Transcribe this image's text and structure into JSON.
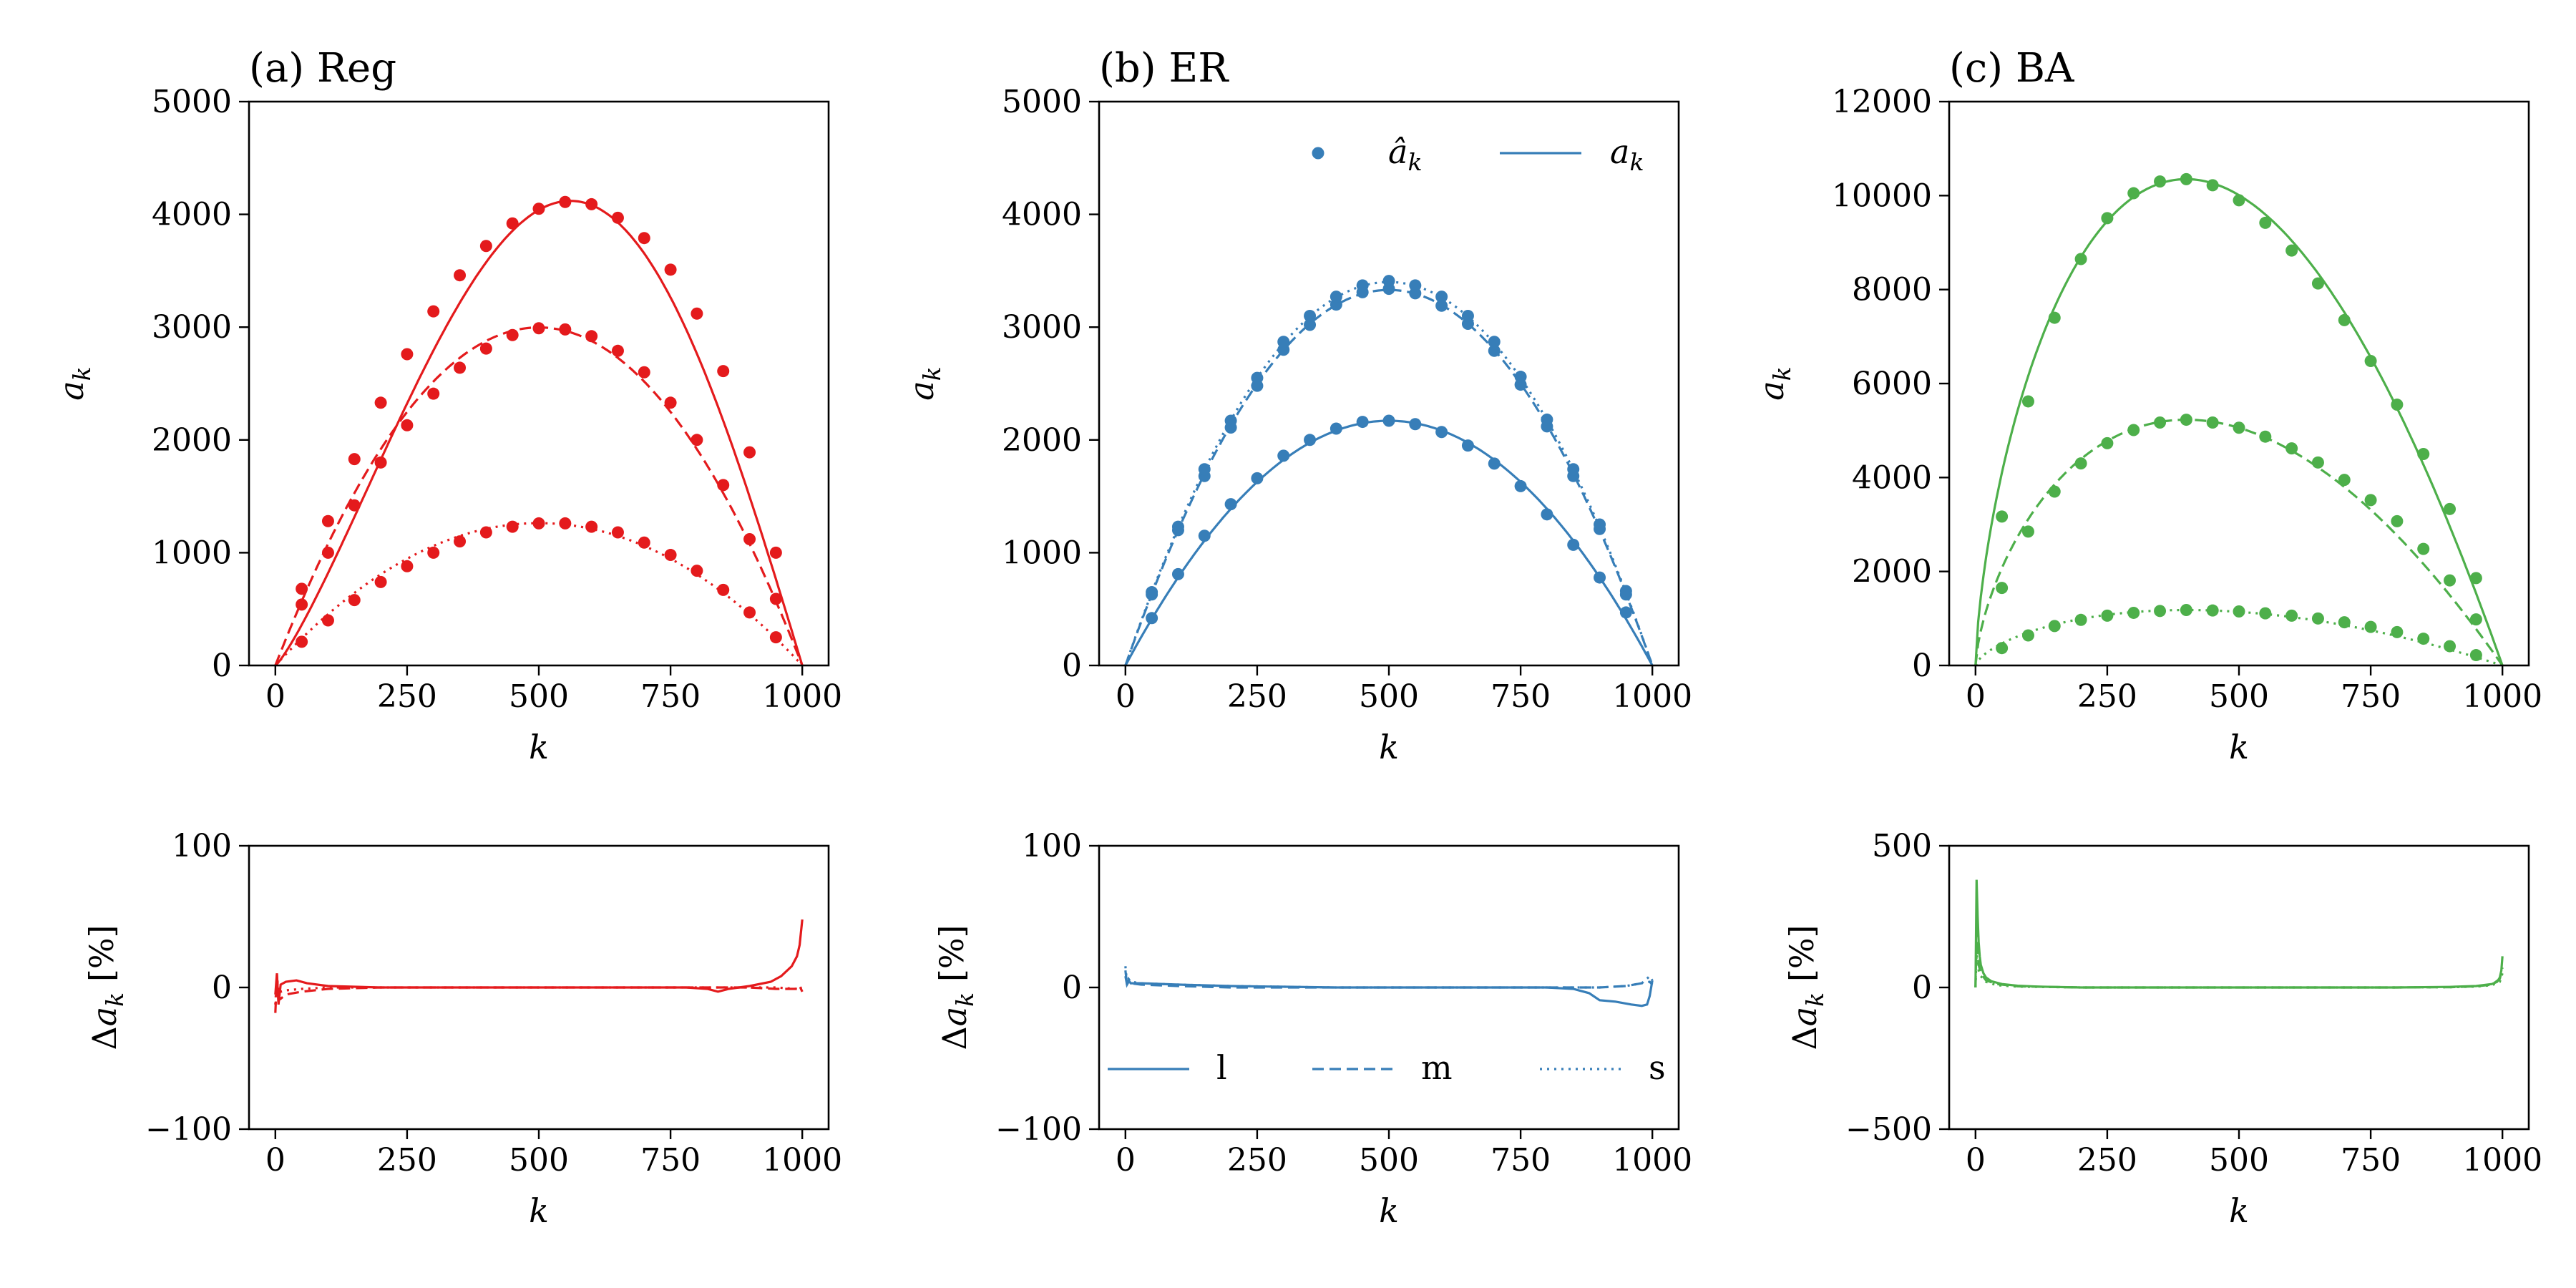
{
  "colors": {
    "reg": "#e41a1c",
    "er": "#377eb8",
    "ba": "#4daf4a",
    "axis": "#000000"
  },
  "legend_top": {
    "marker_label": "â_k",
    "line_label": "a_k"
  },
  "legend_bottom": {
    "items": [
      {
        "label": "l",
        "style": "solid"
      },
      {
        "label": "m",
        "style": "dashed"
      },
      {
        "label": "s",
        "style": "dotted"
      }
    ]
  },
  "chart_data": [
    {
      "panel": "a-top",
      "type": "line",
      "title": "(a) Reg",
      "xlabel": "k",
      "ylabel": "a_k",
      "xlim": [
        -50,
        1050
      ],
      "ylim": [
        0,
        5000
      ],
      "xticks": [
        0,
        250,
        500,
        750,
        1000
      ],
      "xtick_labels": [
        "0",
        "250",
        "500",
        "750",
        "1000"
      ],
      "yticks": [
        0,
        1000,
        2000,
        3000,
        4000,
        5000
      ],
      "ytick_labels": [
        "0",
        "1000",
        "2000",
        "3000",
        "4000",
        "5000"
      ],
      "color": "#e41a1c",
      "series": [
        {
          "style": "solid",
          "shape": "sine",
          "peak": 4120,
          "peak_x": 560,
          "start": 0,
          "end": 1000
        },
        {
          "style": "dashed",
          "shape": "parabola",
          "peak": 2990,
          "peak_x": 525,
          "start": 0,
          "end": 1000
        },
        {
          "style": "dotted",
          "shape": "parabola",
          "peak": 1260,
          "peak_x": 520,
          "start": 0,
          "end": 1000
        }
      ],
      "points": [
        {
          "x": [
            50,
            100,
            150,
            200,
            250,
            300,
            350,
            400,
            450,
            500,
            550,
            600,
            650,
            700,
            750,
            800,
            850,
            900,
            950
          ],
          "y": [
            680,
            1280,
            1830,
            2330,
            2760,
            3140,
            3460,
            3720,
            3920,
            4050,
            4110,
            4090,
            3970,
            3790,
            3510,
            3120,
            2610,
            1890,
            1000
          ]
        },
        {
          "x": [
            50,
            100,
            150,
            200,
            250,
            300,
            350,
            400,
            450,
            500,
            550,
            600,
            650,
            700,
            750,
            800,
            850,
            900,
            950
          ],
          "y": [
            540,
            1000,
            1420,
            1800,
            2130,
            2410,
            2640,
            2810,
            2930,
            2990,
            2980,
            2920,
            2790,
            2600,
            2330,
            2000,
            1600,
            1120,
            590
          ]
        },
        {
          "x": [
            50,
            100,
            150,
            200,
            250,
            300,
            350,
            400,
            450,
            500,
            550,
            600,
            650,
            700,
            750,
            800,
            850,
            900,
            950
          ],
          "y": [
            210,
            400,
            580,
            740,
            880,
            1000,
            1100,
            1180,
            1230,
            1260,
            1260,
            1230,
            1180,
            1090,
            980,
            840,
            670,
            470,
            250
          ]
        }
      ]
    },
    {
      "panel": "b-top",
      "type": "line",
      "title": "(b) ER",
      "xlabel": "k",
      "ylabel": "a_k",
      "xlim": [
        -50,
        1050
      ],
      "ylim": [
        0,
        5000
      ],
      "xticks": [
        0,
        250,
        500,
        750,
        1000
      ],
      "xtick_labels": [
        "0",
        "250",
        "500",
        "750",
        "1000"
      ],
      "yticks": [
        0,
        1000,
        2000,
        3000,
        4000,
        5000
      ],
      "ytick_labels": [
        "0",
        "1000",
        "2000",
        "3000",
        "4000",
        "5000"
      ],
      "color": "#377eb8",
      "series": [
        {
          "style": "solid",
          "shape": "parabola",
          "peak": 2170,
          "peak_x": 500,
          "start": 0,
          "end": 1000
        },
        {
          "style": "dashed",
          "shape": "parabola",
          "peak": 3330,
          "peak_x": 500,
          "start": 0,
          "end": 1000
        },
        {
          "style": "dotted",
          "shape": "parabola",
          "peak": 3400,
          "peak_x": 500,
          "start": 0,
          "end": 1000
        }
      ],
      "points": [
        {
          "x": [
            50,
            100,
            150,
            200,
            250,
            300,
            350,
            400,
            450,
            500,
            550,
            600,
            650,
            700,
            750,
            800,
            850,
            900,
            950
          ],
          "y": [
            420,
            810,
            1150,
            1430,
            1660,
            1860,
            2000,
            2100,
            2160,
            2170,
            2140,
            2070,
            1950,
            1790,
            1590,
            1340,
            1070,
            780,
            470
          ]
        },
        {
          "x": [
            50,
            100,
            150,
            200,
            250,
            300,
            350,
            400,
            450,
            500,
            550,
            600,
            650,
            700,
            750,
            800,
            850,
            900,
            950
          ],
          "y": [
            630,
            1200,
            1680,
            2110,
            2480,
            2800,
            3020,
            3200,
            3310,
            3340,
            3300,
            3190,
            3030,
            2790,
            2490,
            2120,
            1680,
            1210,
            630
          ]
        },
        {
          "x": [
            50,
            100,
            150,
            200,
            250,
            300,
            350,
            400,
            450,
            500,
            550,
            600,
            650,
            700,
            750,
            800,
            850,
            900,
            950
          ],
          "y": [
            650,
            1230,
            1740,
            2170,
            2550,
            2870,
            3100,
            3270,
            3370,
            3410,
            3370,
            3270,
            3100,
            2870,
            2560,
            2180,
            1740,
            1250,
            660
          ]
        }
      ]
    },
    {
      "panel": "c-top",
      "type": "line",
      "title": "(c) BA",
      "xlabel": "k",
      "ylabel": "a_k",
      "xlim": [
        -50,
        1050
      ],
      "ylim": [
        0,
        12000
      ],
      "xticks": [
        0,
        250,
        500,
        750,
        1000
      ],
      "xtick_labels": [
        "0",
        "250",
        "500",
        "750",
        "1000"
      ],
      "yticks": [
        0,
        2000,
        4000,
        6000,
        8000,
        10000,
        12000
      ],
      "ytick_labels": [
        "0",
        "2000",
        "4000",
        "6000",
        "8000",
        "10000",
        "12000"
      ],
      "color": "#4daf4a",
      "series": [
        {
          "style": "solid",
          "shape": "skew",
          "peak": 10350,
          "peak_x": 400,
          "start": 0,
          "end": 1000
        },
        {
          "style": "dashed",
          "shape": "skew",
          "peak": 5230,
          "peak_x": 400,
          "start": 0,
          "end": 1000
        },
        {
          "style": "dotted",
          "shape": "skew",
          "peak": 1180,
          "peak_x": 400,
          "start": 0,
          "end": 1000
        }
      ],
      "points": [
        {
          "x": [
            50,
            100,
            150,
            200,
            250,
            300,
            350,
            400,
            450,
            500,
            550,
            600,
            650,
            700,
            750,
            800,
            850,
            900,
            950
          ],
          "y": [
            3170,
            5620,
            7400,
            8650,
            9520,
            10050,
            10300,
            10350,
            10220,
            9900,
            9420,
            8830,
            8130,
            7350,
            6480,
            5550,
            4500,
            3330,
            1860
          ]
        },
        {
          "x": [
            50,
            100,
            150,
            200,
            250,
            300,
            350,
            400,
            450,
            500,
            550,
            600,
            650,
            700,
            750,
            800,
            850,
            900,
            950
          ],
          "y": [
            1650,
            2850,
            3700,
            4300,
            4730,
            5010,
            5170,
            5230,
            5170,
            5060,
            4870,
            4620,
            4320,
            3950,
            3520,
            3070,
            2480,
            1810,
            980
          ]
        },
        {
          "x": [
            50,
            100,
            150,
            200,
            250,
            300,
            350,
            400,
            450,
            500,
            550,
            600,
            650,
            700,
            750,
            800,
            850,
            900,
            950
          ],
          "y": [
            370,
            640,
            840,
            970,
            1060,
            1120,
            1160,
            1180,
            1170,
            1150,
            1110,
            1060,
            1000,
            920,
            820,
            710,
            570,
            410,
            220
          ]
        }
      ]
    },
    {
      "panel": "a-bottom",
      "type": "line",
      "xlabel": "k",
      "ylabel": "Δa_k [%]",
      "xlim": [
        -50,
        1050
      ],
      "ylim": [
        -100,
        100
      ],
      "xticks": [
        0,
        250,
        500,
        750,
        1000
      ],
      "xtick_labels": [
        "0",
        "250",
        "500",
        "750",
        "1000"
      ],
      "yticks": [
        -100,
        0,
        100
      ],
      "ytick_labels": [
        "−100",
        "0",
        "100"
      ],
      "color": "#e41a1c",
      "series": [
        {
          "style": "solid",
          "x": [
            0,
            3,
            6,
            10,
            20,
            40,
            60,
            100,
            200,
            300,
            400,
            500,
            600,
            700,
            780,
            820,
            840,
            860,
            900,
            940,
            960,
            980,
            990,
            995,
            1000
          ],
          "y": [
            -5,
            10,
            -12,
            2,
            4,
            5,
            3,
            1,
            0,
            0,
            0,
            0,
            0,
            0,
            0,
            -1,
            -3,
            -1,
            1,
            4,
            8,
            15,
            22,
            30,
            48
          ]
        },
        {
          "style": "dashed",
          "x": [
            0,
            3,
            6,
            10,
            20,
            50,
            100,
            200,
            400,
            600,
            800,
            900,
            950,
            990,
            995,
            1000
          ],
          "y": [
            -18,
            8,
            -6,
            -8,
            -5,
            -3,
            -1,
            0,
            0,
            0,
            0,
            0,
            -1,
            -1,
            1,
            -3
          ]
        },
        {
          "style": "dotted",
          "x": [
            0,
            3,
            6,
            10,
            20,
            50,
            100,
            200,
            400,
            600,
            800,
            900,
            950,
            990,
            995,
            1000
          ],
          "y": [
            -12,
            9,
            -4,
            -3,
            -2,
            -1,
            0,
            0,
            0,
            0,
            0,
            0,
            0,
            -1,
            1,
            -2
          ]
        }
      ]
    },
    {
      "panel": "b-bottom",
      "type": "line",
      "xlabel": "k",
      "ylabel": "Δa_k [%]",
      "xlim": [
        -50,
        1050
      ],
      "ylim": [
        -100,
        100
      ],
      "xticks": [
        0,
        250,
        500,
        750,
        1000
      ],
      "xtick_labels": [
        "0",
        "250",
        "500",
        "750",
        "1000"
      ],
      "yticks": [
        -100,
        0,
        100
      ],
      "ytick_labels": [
        "−100",
        "0",
        "100"
      ],
      "color": "#377eb8",
      "series": [
        {
          "style": "solid",
          "x": [
            0,
            3,
            6,
            10,
            30,
            100,
            200,
            400,
            600,
            800,
            850,
            880,
            900,
            930,
            960,
            980,
            990,
            995,
            1000
          ],
          "y": [
            12,
            2,
            5,
            3,
            3,
            2,
            1,
            0,
            0,
            0,
            -1,
            -4,
            -9,
            -10,
            -12,
            -13,
            -12,
            -6,
            5
          ]
        },
        {
          "style": "dashed",
          "x": [
            0,
            3,
            6,
            10,
            30,
            100,
            200,
            400,
            600,
            800,
            900,
            950,
            980,
            995,
            1000
          ],
          "y": [
            8,
            2,
            4,
            3,
            2,
            1,
            0,
            0,
            0,
            0,
            0,
            1,
            3,
            4,
            2
          ]
        },
        {
          "style": "dotted",
          "x": [
            0,
            3,
            6,
            10,
            30,
            100,
            200,
            400,
            600,
            800,
            900,
            950,
            980,
            995,
            1000
          ],
          "y": [
            15,
            3,
            6,
            4,
            3,
            2,
            1,
            0,
            0,
            0,
            0,
            1,
            3,
            8,
            5
          ]
        }
      ]
    },
    {
      "panel": "c-bottom",
      "type": "line",
      "xlabel": "k",
      "ylabel": "Δa_k [%]",
      "xlim": [
        -50,
        1050
      ],
      "ylim": [
        -500,
        500
      ],
      "xticks": [
        0,
        250,
        500,
        750,
        1000
      ],
      "xtick_labels": [
        "0",
        "250",
        "500",
        "750",
        "1000"
      ],
      "yticks": [
        -500,
        0,
        500
      ],
      "ytick_labels": [
        "−500",
        "0",
        "500"
      ],
      "color": "#4daf4a",
      "series": [
        {
          "style": "solid",
          "x": [
            0,
            2,
            4,
            6,
            8,
            10,
            15,
            20,
            30,
            50,
            80,
            120,
            200,
            400,
            600,
            800,
            900,
            950,
            980,
            990,
            995,
            998,
            1000
          ],
          "y": [
            0,
            380,
            250,
            160,
            110,
            80,
            50,
            35,
            22,
            12,
            6,
            3,
            0,
            0,
            0,
            0,
            2,
            5,
            12,
            20,
            35,
            60,
            110
          ]
        },
        {
          "style": "dashed",
          "x": [
            0,
            2,
            4,
            6,
            10,
            20,
            40,
            80,
            200,
            400,
            600,
            800,
            900,
            950,
            980,
            995,
            1000
          ],
          "y": [
            0,
            200,
            120,
            80,
            50,
            25,
            12,
            4,
            0,
            0,
            0,
            0,
            1,
            4,
            10,
            30,
            70
          ]
        },
        {
          "style": "dotted",
          "x": [
            0,
            2,
            4,
            6,
            10,
            20,
            40,
            80,
            200,
            400,
            600,
            800,
            900,
            950,
            980,
            995,
            1000
          ],
          "y": [
            0,
            120,
            80,
            60,
            40,
            20,
            8,
            3,
            0,
            0,
            0,
            0,
            1,
            3,
            8,
            20,
            50
          ]
        }
      ]
    }
  ]
}
